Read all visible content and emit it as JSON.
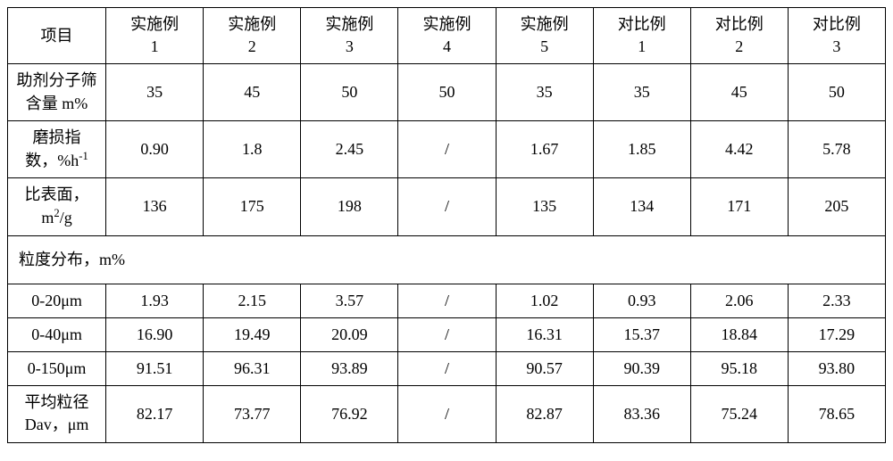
{
  "table": {
    "columns": [
      {
        "line1": "项目",
        "line2": ""
      },
      {
        "line1": "实施例",
        "line2": "1"
      },
      {
        "line1": "实施例",
        "line2": "2"
      },
      {
        "line1": "实施例",
        "line2": "3"
      },
      {
        "line1": "实施例",
        "line2": "4"
      },
      {
        "line1": "实施例",
        "line2": "5"
      },
      {
        "line1": "对比例",
        "line2": "1"
      },
      {
        "line1": "对比例",
        "line2": "2"
      },
      {
        "line1": "对比例",
        "line2": "3"
      }
    ],
    "rows_top": [
      {
        "label_html": "助剂分子筛<br>含量 m%",
        "values": [
          "35",
          "45",
          "50",
          "50",
          "35",
          "35",
          "45",
          "50"
        ]
      },
      {
        "label_html": "磨损指<br>数，%h<sup>-1</sup>",
        "values": [
          "0.90",
          "1.8",
          "2.45",
          "/",
          "1.67",
          "1.85",
          "4.42",
          "5.78"
        ]
      },
      {
        "label_html": "比表面，<br>m<sup>2</sup>/g",
        "values": [
          "136",
          "175",
          "198",
          "/",
          "135",
          "134",
          "171",
          "205"
        ]
      }
    ],
    "section_label": "粒度分布，m%",
    "rows_bottom": [
      {
        "label_html": "0-20μm",
        "values": [
          "1.93",
          "2.15",
          "3.57",
          "/",
          "1.02",
          "0.93",
          "2.06",
          "2.33"
        ]
      },
      {
        "label_html": "0-40μm",
        "values": [
          "16.90",
          "19.49",
          "20.09",
          "/",
          "16.31",
          "15.37",
          "18.84",
          "17.29"
        ]
      },
      {
        "label_html": "0-150μm",
        "values": [
          "91.51",
          "96.31",
          "93.89",
          "/",
          "90.57",
          "90.39",
          "95.18",
          "93.80"
        ]
      },
      {
        "label_html": "平均粒径<br>Dav，μm",
        "values": [
          "82.17",
          "73.77",
          "76.92",
          "/",
          "82.87",
          "83.36",
          "75.24",
          "78.65"
        ]
      }
    ],
    "border_color": "#000000",
    "background_color": "#ffffff",
    "font_size": 18
  }
}
